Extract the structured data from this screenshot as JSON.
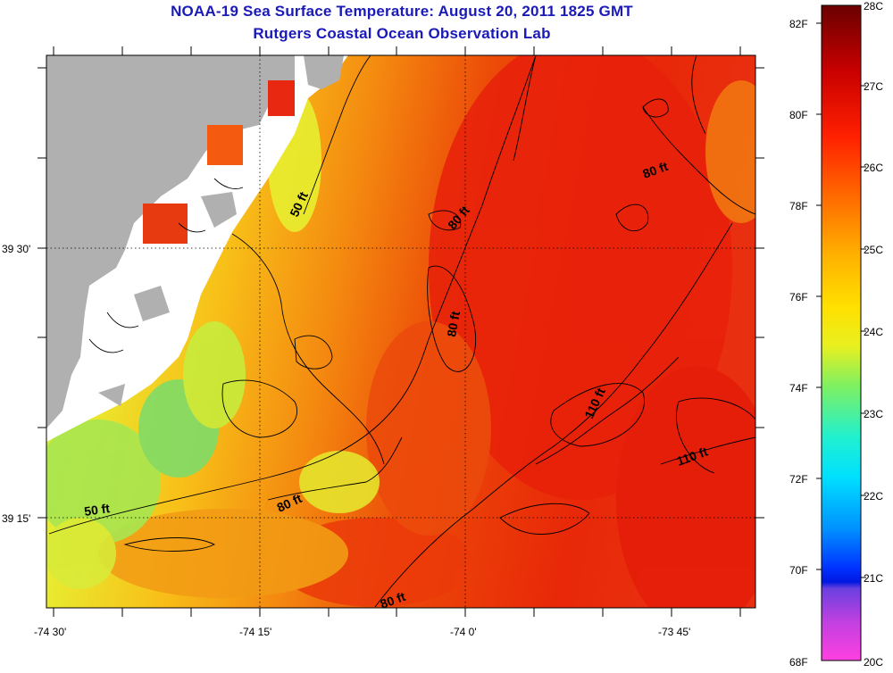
{
  "title": "NOAA-19 Sea Surface Temperature:  August 20, 2011 1825 GMT",
  "subtitle": "Rutgers Coastal Ocean Observation Lab",
  "axes": {
    "lon_ticks": [
      "-74 30'",
      "-74 15'",
      "-74 0'",
      "-73 45'"
    ],
    "lat_ticks": [
      "39 30'",
      "39 15'"
    ]
  },
  "contour_labels": {
    "c1": "50 ft",
    "c2": "50 ft",
    "c3": "80 ft",
    "c4": "80 ft",
    "c5": "80 ft",
    "c6": "80 ft",
    "c7": "80 ft",
    "c8": "110 ft",
    "c9": "110 ft"
  },
  "colorbar": {
    "fahrenheit": [
      "82F",
      "80F",
      "78F",
      "76F",
      "74F",
      "72F",
      "70F",
      "68F"
    ],
    "celsius": [
      "28C",
      "27C",
      "26C",
      "25C",
      "24C",
      "23C",
      "22C",
      "21C",
      "20C"
    ]
  },
  "colors": {
    "land": "#b0b0b0",
    "title": "#1a1ab8",
    "warm": "#e8280c",
    "cool": "#78e060"
  }
}
